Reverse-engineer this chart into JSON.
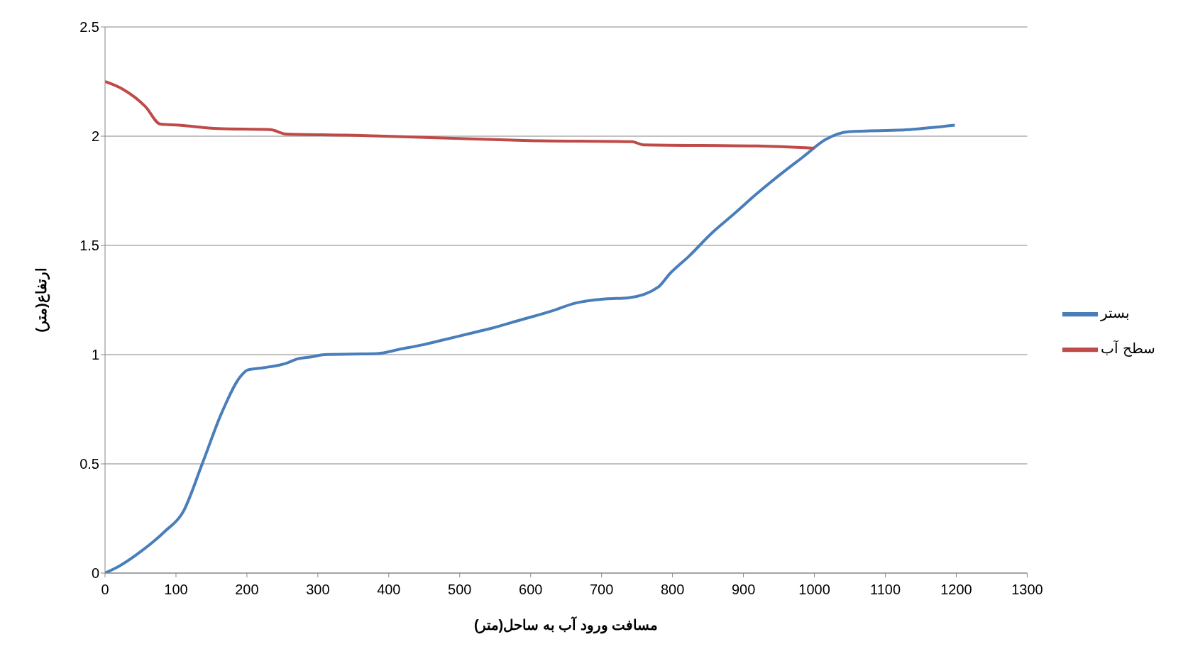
{
  "chart_data": {
    "type": "line",
    "xlabel": "مسافت ورود آب به ساحل(متر)",
    "ylabel": "ارتفاع(متر)",
    "xlim": [
      0,
      1300
    ],
    "xticks": [
      0,
      100,
      200,
      300,
      400,
      500,
      600,
      700,
      800,
      900,
      1000,
      1100,
      1200,
      1300
    ],
    "ylim": [
      0,
      2.5
    ],
    "yticks": [
      0,
      0.5,
      1,
      1.5,
      2,
      2.5
    ],
    "grid": "y",
    "legend": "right",
    "marker": "none",
    "line_style": "solid",
    "series": [
      {
        "name": "بستر",
        "color": "#4a7ebb",
        "x": [
          0,
          19,
          51,
          84,
          110,
          137,
          164,
          191,
          201,
          223,
          255,
          271,
          292,
          309,
          384,
          416,
          448,
          480,
          512,
          544,
          587,
          630,
          662,
          705,
          737,
          780,
          796,
          823,
          855,
          887,
          920,
          952,
          984,
          1016,
          1048,
          1134,
          1198
        ],
        "values": [
          0,
          0.03,
          0.1,
          0.19,
          0.28,
          0.5,
          0.73,
          0.9,
          0.93,
          0.94,
          0.96,
          0.98,
          0.99,
          1.0,
          1.005,
          1.025,
          1.045,
          1.07,
          1.095,
          1.12,
          1.16,
          1.2,
          1.235,
          1.255,
          1.26,
          1.31,
          1.37,
          1.45,
          1.555,
          1.645,
          1.74,
          1.825,
          1.905,
          1.985,
          2.02,
          2.03,
          2.05
        ]
      },
      {
        "name": "سطح آب",
        "color": "#be4b48",
        "x": [
          0,
          25,
          57,
          78,
          105,
          159,
          233,
          255,
          341,
          491,
          598,
          743,
          759,
          920,
          1000
        ],
        "values": [
          2.25,
          2.215,
          2.135,
          2.055,
          2.05,
          2.035,
          2.03,
          2.01,
          2.005,
          1.99,
          1.98,
          1.975,
          1.96,
          1.955,
          1.945
        ]
      }
    ]
  }
}
